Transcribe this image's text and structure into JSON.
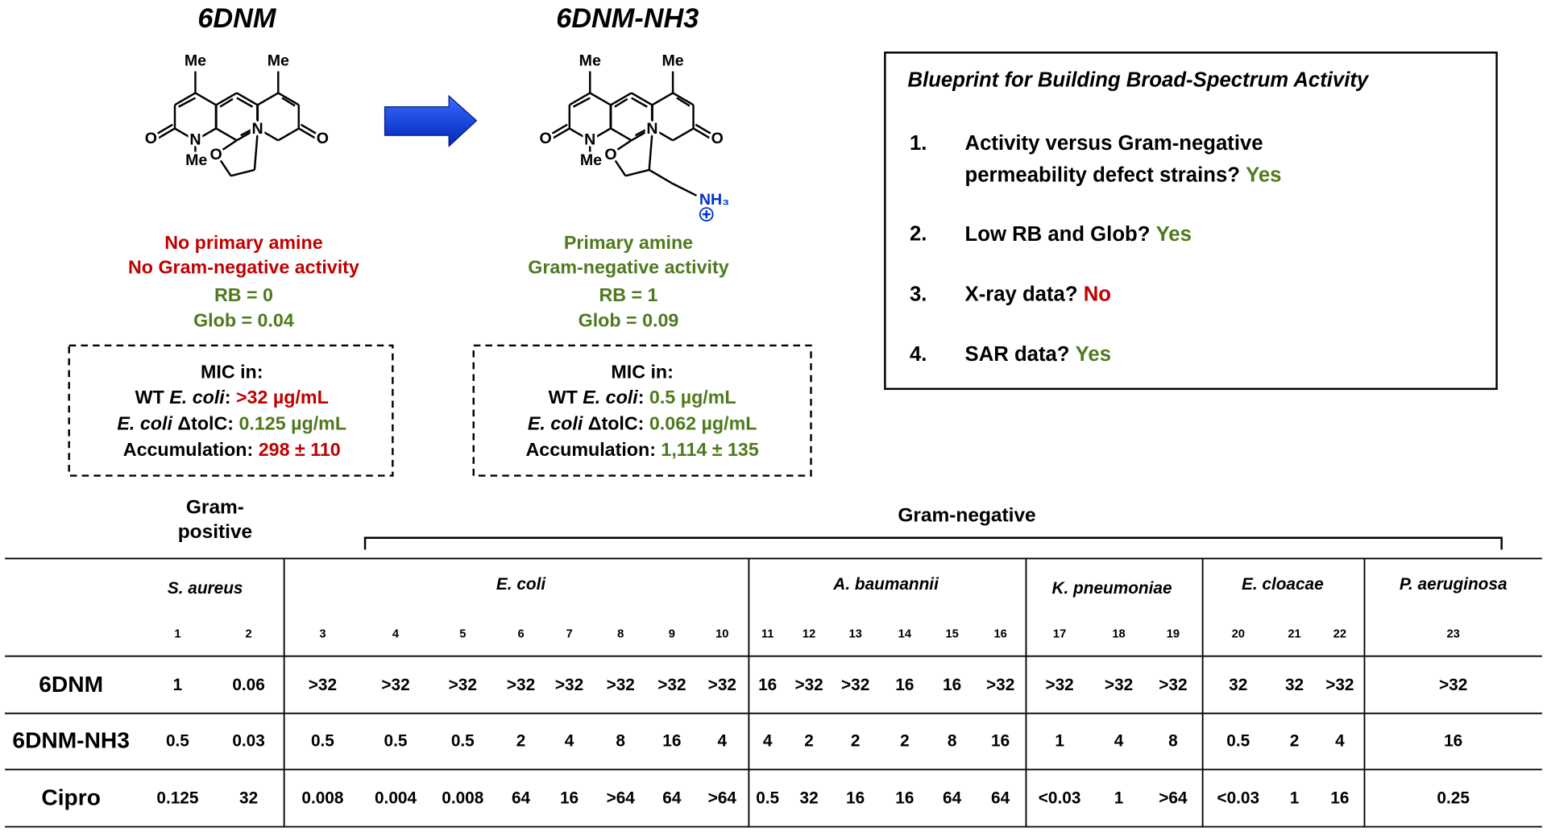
{
  "compounds": [
    {
      "name": "6DNM",
      "atoms": [
        "Me",
        "Me",
        "O",
        "N",
        "Me",
        "O",
        "N",
        "O"
      ],
      "notes": [
        {
          "text": "No primary amine",
          "color": "#c00000"
        },
        {
          "text": "No Gram-negative activity",
          "color": "#c00000"
        },
        {
          "text": "RB = 0",
          "color": "#4e7a1e"
        },
        {
          "text": "Glob = 0.04",
          "color": "#4e7a1e"
        }
      ],
      "mic_title": "MIC in:",
      "mic": [
        {
          "label": [
            {
              "text": "WT "
            },
            {
              "text": "E. coli",
              "italic": true
            },
            {
              "text": ": "
            }
          ],
          "value": ">32 µg/mL",
          "color": "#c00000"
        },
        {
          "label": [
            {
              "text": "E. coli",
              "italic": true
            },
            {
              "text": " ΔtolC: "
            }
          ],
          "value": "0.125 µg/mL",
          "color": "#4e7a1e"
        },
        {
          "label": [
            {
              "text": "Accumulation: "
            }
          ],
          "value": "298 ± 110",
          "color": "#c00000"
        }
      ]
    },
    {
      "name": "6DNM-NH3",
      "atoms": [
        "Me",
        "Me",
        "O",
        "N",
        "Me",
        "O",
        "N",
        "O",
        "NH₃"
      ],
      "notes": [
        {
          "text": "Primary amine",
          "color": "#4e7a1e"
        },
        {
          "text": "Gram-negative activity",
          "color": "#4e7a1e"
        },
        {
          "text": "RB = 1",
          "color": "#4e7a1e"
        },
        {
          "text": "Glob = 0.09",
          "color": "#4e7a1e"
        }
      ],
      "mic_title": "MIC in:",
      "mic": [
        {
          "label": [
            {
              "text": "WT "
            },
            {
              "text": "E. coli",
              "italic": true
            },
            {
              "text": ": "
            }
          ],
          "value": "0.5 µg/mL",
          "color": "#4e7a1e"
        },
        {
          "label": [
            {
              "text": "E. coli",
              "italic": true
            },
            {
              "text": " ΔtolC: "
            }
          ],
          "value": "0.062 µg/mL",
          "color": "#4e7a1e"
        },
        {
          "label": [
            {
              "text": "Accumulation: "
            }
          ],
          "value": "1,114 ± 135",
          "color": "#4e7a1e"
        }
      ]
    }
  ],
  "blueprint": {
    "title": "Blueprint for Building Broad-Spectrum Activity",
    "items": [
      {
        "number": "1.",
        "lines": [
          "Activity versus Gram-negative",
          "permeability defect strains?"
        ],
        "answer": "Yes",
        "color": "#4e7a1e"
      },
      {
        "number": "2.",
        "lines": [
          "Low RB and Glob?"
        ],
        "answer": "Yes",
        "color": "#4e7a1e"
      },
      {
        "number": "3.",
        "lines": [
          "X-ray data?"
        ],
        "answer": "No",
        "color": "#c00000"
      },
      {
        "number": "4.",
        "lines": [
          "SAR data?"
        ],
        "answer": "Yes",
        "color": "#4e7a1e"
      }
    ]
  },
  "table": {
    "gram_positive": [
      "Gram-",
      "positive"
    ],
    "gram_negative": "Gram-negative",
    "groups": [
      {
        "name": "S. aureus",
        "columns": [
          1,
          2
        ]
      },
      {
        "name": "E. coli",
        "columns": [
          3,
          4,
          5,
          6,
          7,
          8,
          9,
          10
        ]
      },
      {
        "name": "A. baumannii",
        "columns": [
          11,
          12,
          13,
          14,
          15,
          16
        ]
      },
      {
        "name": "K. pneumoniae",
        "columns": [
          17,
          18,
          19
        ]
      },
      {
        "name": "E. cloacae",
        "columns": [
          20,
          21,
          22
        ]
      },
      {
        "name": "P. aeruginosa",
        "columns": [
          23
        ]
      }
    ],
    "rows": [
      {
        "label": "6DNM",
        "values": [
          "1",
          "0.06",
          ">32",
          ">32",
          ">32",
          ">32",
          ">32",
          ">32",
          ">32",
          ">32",
          "16",
          ">32",
          ">32",
          "16",
          "16",
          ">32",
          ">32",
          ">32",
          ">32",
          "32",
          "32",
          ">32",
          ">32"
        ]
      },
      {
        "label": "6DNM-NH3",
        "values": [
          "0.5",
          "0.03",
          "0.5",
          "0.5",
          "0.5",
          "2",
          "4",
          "8",
          "16",
          "4",
          "4",
          "2",
          "2",
          "2",
          "8",
          "16",
          "1",
          "4",
          "8",
          "0.5",
          "2",
          "4",
          "16"
        ]
      },
      {
        "label": "Cipro",
        "values": [
          "0.125",
          "32",
          "0.008",
          "0.004",
          "0.008",
          "64",
          "16",
          ">64",
          "64",
          ">64",
          "0.5",
          "32",
          "16",
          "16",
          "64",
          "64",
          "<0.03",
          "1",
          ">64",
          "<0.03",
          "1",
          "16",
          "0.25"
        ]
      }
    ]
  }
}
